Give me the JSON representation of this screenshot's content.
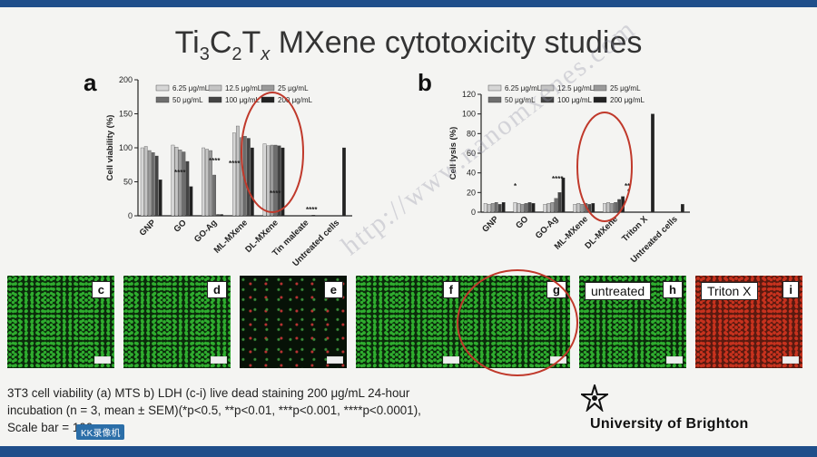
{
  "slide": {
    "title_main": "Ti",
    "title_sub1": "3",
    "title_c": "C",
    "title_sub2": "2",
    "title_t": "T",
    "title_sub3": "x",
    "title_rest": " MXene cytotoxicity studies",
    "panel_a": "a",
    "panel_b": "b"
  },
  "chart_data": [
    {
      "type": "bar",
      "ylabel": "Cell viability (%)",
      "ylim": [
        0,
        200
      ],
      "yticks": [
        "0",
        "50",
        "100",
        "150",
        "200"
      ],
      "categories": [
        "GNP",
        "GO",
        "GO-Ag",
        "ML-MXene",
        "DL-MXene",
        "Tin maleate",
        "Untreated cells"
      ],
      "series": [
        {
          "name": "6.25 μg/mL",
          "values": [
            100,
            104,
            100,
            122,
            106,
            0,
            0
          ]
        },
        {
          "name": "12.5 μg/mL",
          "values": [
            102,
            101,
            98,
            132,
            103,
            0,
            0
          ]
        },
        {
          "name": "25 μg/mL",
          "values": [
            96,
            97,
            96,
            115,
            104,
            0,
            0
          ]
        },
        {
          "name": "50 μg/mL",
          "values": [
            93,
            94,
            60,
            117,
            104,
            0,
            0
          ]
        },
        {
          "name": "100 μg/mL",
          "values": [
            88,
            80,
            2,
            114,
            103,
            0,
            0
          ]
        },
        {
          "name": "200 μg/mL",
          "values": [
            53,
            43,
            2,
            100,
            100,
            1,
            100
          ]
        }
      ],
      "annotations": [
        "****",
        "****",
        "****",
        "****",
        "****"
      ]
    },
    {
      "type": "bar",
      "ylabel": "Cell lysis (%)",
      "ylim": [
        0,
        120
      ],
      "yticks": [
        "0",
        "20",
        "40",
        "60",
        "80",
        "100",
        "120"
      ],
      "categories": [
        "GNP",
        "GO",
        "GO-Ag",
        "ML-MXene",
        "DL-MXene",
        "Triton X",
        "Untreated cells"
      ],
      "series": [
        {
          "name": "6.25 μg/mL",
          "values": [
            9,
            10,
            8,
            8,
            9,
            0,
            0
          ]
        },
        {
          "name": "12.5 μg/mL",
          "values": [
            8,
            9,
            9,
            9,
            10,
            0,
            0
          ]
        },
        {
          "name": "25 μg/mL",
          "values": [
            9,
            8,
            10,
            8,
            9,
            0,
            0
          ]
        },
        {
          "name": "50 μg/mL",
          "values": [
            10,
            9,
            14,
            9,
            10,
            0,
            0
          ]
        },
        {
          "name": "100 μg/mL",
          "values": [
            8,
            10,
            20,
            8,
            13,
            0,
            0
          ]
        },
        {
          "name": "200 μg/mL",
          "values": [
            10,
            9,
            35,
            9,
            16,
            100,
            8
          ]
        }
      ],
      "annotations": [
        "*",
        "****",
        "**",
        "*"
      ]
    }
  ],
  "micro": [
    {
      "label": "c",
      "color": "#2fae2f",
      "extra": ""
    },
    {
      "label": "d",
      "color": "#2fae2f",
      "extra": ""
    },
    {
      "label": "e",
      "color": "#0d2a0d",
      "extra": ""
    },
    {
      "label": "f",
      "color": "#2fae2f",
      "extra": ""
    },
    {
      "label": "g",
      "color": "#2fae2f",
      "extra": ""
    },
    {
      "label": "h",
      "color": "#2fae2f",
      "extra": "untreated"
    },
    {
      "label": "i",
      "color": "#c8321e",
      "extra": "Triton X"
    }
  ],
  "caption": {
    "line1": "3T3 cell viability (a) MTS b) LDH (c-i) live dead staining 200 μg/mL 24-hour",
    "line2": "incubation (n = 3, mean ± SEM)(*p<0.5, **p<0.01, ***p<0.001, ****p<0.0001),",
    "line3": "Scale bar = 100 μm"
  },
  "university": "University of Brighton",
  "watermark": "http://www.nanomxenes.com",
  "tag": "KK录像机",
  "colors": {
    "accent_bar": "#1f4e8a",
    "highlight_circle": "#c0392b",
    "live": "#2fae2f",
    "dead": "#c8321e"
  }
}
